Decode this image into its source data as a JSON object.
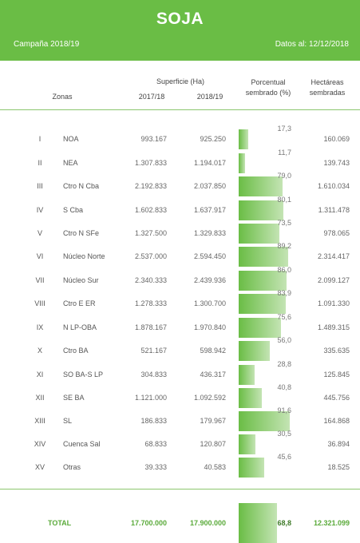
{
  "header": {
    "title": "SOJA",
    "campaign": "Campaña 2018/19",
    "date": "Datos al: 12/12/2018"
  },
  "columns": {
    "zonas": "Zonas",
    "superficie": "Superficie (Ha)",
    "y1": "2017/18",
    "y2": "2018/19",
    "porcentual_1": "Porcentual",
    "porcentual_2": "sembrado (%)",
    "hectareas_1": "Hectáreas",
    "hectareas_2": "sembradas"
  },
  "rows": [
    {
      "num": "I",
      "zona": "NOA",
      "s1718": "993.167",
      "s1819": "925.250",
      "pct": "17,3",
      "pct_value": 17.3,
      "hec": "160.069"
    },
    {
      "num": "II",
      "zona": "NEA",
      "s1718": "1.307.833",
      "s1819": "1.194.017",
      "pct": "11,7",
      "pct_value": 11.7,
      "hec": "139.743"
    },
    {
      "num": "III",
      "zona": "Ctro N Cba",
      "s1718": "2.192.833",
      "s1819": "2.037.850",
      "pct": "79,0",
      "pct_value": 79.0,
      "hec": "1.610.034"
    },
    {
      "num": "IV",
      "zona": "S Cba",
      "s1718": "1.602.833",
      "s1819": "1.637.917",
      "pct": "80,1",
      "pct_value": 80.1,
      "hec": "1.311.478"
    },
    {
      "num": "V",
      "zona": "Ctro N SFe",
      "s1718": "1.327.500",
      "s1819": "1.329.833",
      "pct": "73,5",
      "pct_value": 73.5,
      "hec": "978.065"
    },
    {
      "num": "VI",
      "zona": "Núcleo Norte",
      "s1718": "2.537.000",
      "s1819": "2.594.450",
      "pct": "89,2",
      "pct_value": 89.2,
      "hec": "2.314.417"
    },
    {
      "num": "VII",
      "zona": "Núcleo Sur",
      "s1718": "2.340.333",
      "s1819": "2.439.936",
      "pct": "86,0",
      "pct_value": 86.0,
      "hec": "2.099.127"
    },
    {
      "num": "VIII",
      "zona": "Ctro E ER",
      "s1718": "1.278.333",
      "s1819": "1.300.700",
      "pct": "83,9",
      "pct_value": 83.9,
      "hec": "1.091.330"
    },
    {
      "num": "IX",
      "zona": "N LP-OBA",
      "s1718": "1.878.167",
      "s1819": "1.970.840",
      "pct": "75,6",
      "pct_value": 75.6,
      "hec": "1.489.315"
    },
    {
      "num": "X",
      "zona": "Ctro BA",
      "s1718": "521.167",
      "s1819": "598.942",
      "pct": "56,0",
      "pct_value": 56.0,
      "hec": "335.635"
    },
    {
      "num": "XI",
      "zona": "SO BA-S LP",
      "s1718": "304.833",
      "s1819": "436.317",
      "pct": "28,8",
      "pct_value": 28.8,
      "hec": "125.845"
    },
    {
      "num": "XII",
      "zona": "SE BA",
      "s1718": "1.121.000",
      "s1819": "1.092.592",
      "pct": "40,8",
      "pct_value": 40.8,
      "hec": "445.756"
    },
    {
      "num": "XIII",
      "zona": "SL",
      "s1718": "186.833",
      "s1819": "179.967",
      "pct": "91,6",
      "pct_value": 91.6,
      "hec": "164.868"
    },
    {
      "num": "XIV",
      "zona": "Cuenca Sal",
      "s1718": "68.833",
      "s1819": "120.807",
      "pct": "30,5",
      "pct_value": 30.5,
      "hec": "36.894"
    },
    {
      "num": "XV",
      "zona": "Otras",
      "s1718": "39.333",
      "s1819": "40.583",
      "pct": "45,6",
      "pct_value": 45.6,
      "hec": "18.525"
    }
  ],
  "total": {
    "label": "TOTAL",
    "s1718": "17.700.000",
    "s1819": "17.900.000",
    "pct": "68,8",
    "pct_value": 68.8,
    "hec": "12.321.099"
  },
  "colors": {
    "brand_green": "#6abd45",
    "bar_light": "#c4e4b4",
    "total_text": "#5aaa3a"
  }
}
